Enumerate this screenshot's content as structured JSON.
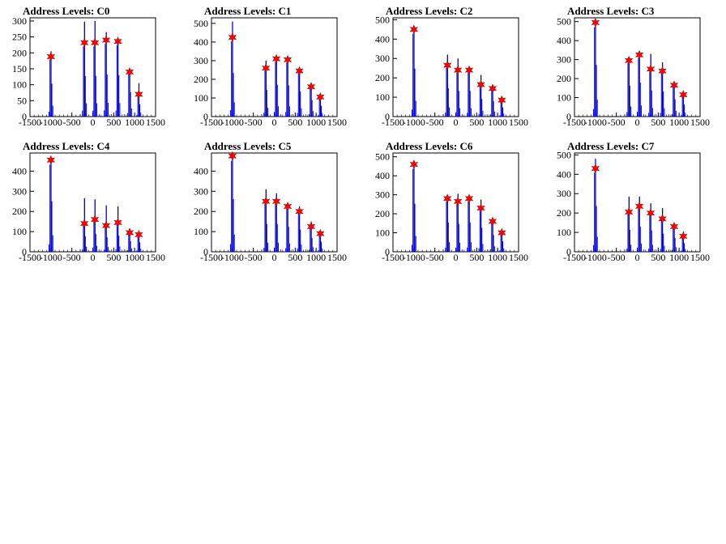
{
  "page": {
    "background": "#ffffff"
  },
  "style": {
    "histogram_color": "#0000ff",
    "peak_marker_color": "#ff0000",
    "frame_color": "#000000",
    "peak_marker_icon": "star-marker-icon"
  },
  "chart_data": [
    {
      "type": "bar",
      "title": "Address Levels: C0",
      "xlim": [
        -1500,
        1500
      ],
      "ylim": [
        0,
        310
      ],
      "xticks": [
        "-1500",
        "-1000",
        "-500",
        "0",
        "500",
        "1000",
        "1500"
      ],
      "yticks": [
        "0",
        "50",
        "100",
        "150",
        "200",
        "250",
        "300"
      ],
      "peaks": [
        {
          "x": -1000,
          "y": 188,
          "max": 205
        },
        {
          "x": -200,
          "y": 232,
          "max": 298
        },
        {
          "x": 50,
          "y": 232,
          "max": 300
        },
        {
          "x": 320,
          "y": 240,
          "max": 265
        },
        {
          "x": 600,
          "y": 236,
          "max": 245
        },
        {
          "x": 880,
          "y": 140,
          "max": 150
        },
        {
          "x": 1100,
          "y": 70,
          "max": 105
        }
      ]
    },
    {
      "type": "bar",
      "title": "Address Levels: C1",
      "xlim": [
        -1500,
        1500
      ],
      "ylim": [
        0,
        530
      ],
      "xticks": [
        "-1500",
        "-1000",
        "-500",
        "0",
        "500",
        "1000",
        "1500"
      ],
      "yticks": [
        "0",
        "100",
        "200",
        "300",
        "400",
        "500"
      ],
      "peaks": [
        {
          "x": -1000,
          "y": 425,
          "max": 510
        },
        {
          "x": -200,
          "y": 260,
          "max": 300
        },
        {
          "x": 50,
          "y": 310,
          "max": 320
        },
        {
          "x": 320,
          "y": 305,
          "max": 310
        },
        {
          "x": 600,
          "y": 245,
          "max": 255
        },
        {
          "x": 880,
          "y": 160,
          "max": 165
        },
        {
          "x": 1100,
          "y": 105,
          "max": 125
        }
      ]
    },
    {
      "type": "bar",
      "title": "Address Levels: C2",
      "xlim": [
        -1500,
        1500
      ],
      "ylim": [
        0,
        510
      ],
      "xticks": [
        "-1500",
        "-1000",
        "-500",
        "0",
        "500",
        "1000",
        "1500"
      ],
      "yticks": [
        "0",
        "100",
        "200",
        "300",
        "400",
        "500"
      ],
      "peaks": [
        {
          "x": -1000,
          "y": 450,
          "max": 465
        },
        {
          "x": -200,
          "y": 265,
          "max": 320
        },
        {
          "x": 50,
          "y": 240,
          "max": 300
        },
        {
          "x": 320,
          "y": 240,
          "max": 250
        },
        {
          "x": 600,
          "y": 165,
          "max": 215
        },
        {
          "x": 880,
          "y": 145,
          "max": 155
        },
        {
          "x": 1100,
          "y": 85,
          "max": 95
        }
      ]
    },
    {
      "type": "bar",
      "title": "Address Levels: C3",
      "xlim": [
        -1500,
        1500
      ],
      "ylim": [
        0,
        520
      ],
      "xticks": [
        "-1500",
        "-1000",
        "-500",
        "0",
        "500",
        "1000",
        "1500"
      ],
      "yticks": [
        "0",
        "100",
        "200",
        "300",
        "400",
        "500"
      ],
      "peaks": [
        {
          "x": -1000,
          "y": 495,
          "max": 510
        },
        {
          "x": -200,
          "y": 295,
          "max": 300
        },
        {
          "x": 50,
          "y": 325,
          "max": 330
        },
        {
          "x": 320,
          "y": 250,
          "max": 330
        },
        {
          "x": 600,
          "y": 240,
          "max": 285
        },
        {
          "x": 880,
          "y": 165,
          "max": 170
        },
        {
          "x": 1100,
          "y": 115,
          "max": 120
        }
      ]
    },
    {
      "type": "bar",
      "title": "Address Levels: C4",
      "xlim": [
        -1500,
        1500
      ],
      "ylim": [
        0,
        490
      ],
      "xticks": [
        "-1500",
        "-1000",
        "-500",
        "0",
        "500",
        "1000",
        "1500"
      ],
      "yticks": [
        "0",
        "100",
        "200",
        "300",
        "400"
      ],
      "peaks": [
        {
          "x": -1000,
          "y": 455,
          "max": 470
        },
        {
          "x": -200,
          "y": 140,
          "max": 265
        },
        {
          "x": 50,
          "y": 160,
          "max": 260
        },
        {
          "x": 320,
          "y": 130,
          "max": 230
        },
        {
          "x": 600,
          "y": 145,
          "max": 225
        },
        {
          "x": 880,
          "y": 95,
          "max": 115
        },
        {
          "x": 1100,
          "y": 85,
          "max": 90
        }
      ]
    },
    {
      "type": "bar",
      "title": "Address Levels: C5",
      "xlim": [
        -1500,
        1500
      ],
      "ylim": [
        0,
        490
      ],
      "xticks": [
        "-1500",
        "-1000",
        "-500",
        "0",
        "500",
        "1000",
        "1500"
      ],
      "yticks": [
        "0",
        "100",
        "200",
        "300",
        "400"
      ],
      "peaks": [
        {
          "x": -1000,
          "y": 475,
          "max": 485
        },
        {
          "x": -200,
          "y": 250,
          "max": 310
        },
        {
          "x": 50,
          "y": 250,
          "max": 290
        },
        {
          "x": 320,
          "y": 225,
          "max": 235
        },
        {
          "x": 600,
          "y": 200,
          "max": 225
        },
        {
          "x": 880,
          "y": 125,
          "max": 150
        },
        {
          "x": 1100,
          "y": 90,
          "max": 95
        }
      ]
    },
    {
      "type": "bar",
      "title": "Address Levels: C6",
      "xlim": [
        -1500,
        1500
      ],
      "ylim": [
        0,
        520
      ],
      "xticks": [
        "-1500",
        "-1000",
        "-500",
        "0",
        "500",
        "1000",
        "1500"
      ],
      "yticks": [
        "0",
        "100",
        "200",
        "300",
        "400",
        "500"
      ],
      "peaks": [
        {
          "x": -1000,
          "y": 460,
          "max": 480
        },
        {
          "x": -200,
          "y": 280,
          "max": 295
        },
        {
          "x": 50,
          "y": 265,
          "max": 305
        },
        {
          "x": 320,
          "y": 280,
          "max": 290
        },
        {
          "x": 600,
          "y": 230,
          "max": 275
        },
        {
          "x": 880,
          "y": 160,
          "max": 165
        },
        {
          "x": 1100,
          "y": 100,
          "max": 105
        }
      ]
    },
    {
      "type": "bar",
      "title": "Address Levels: C7",
      "xlim": [
        -1500,
        1500
      ],
      "ylim": [
        0,
        510
      ],
      "xticks": [
        "-1500",
        "-1000",
        "-500",
        "0",
        "500",
        "1000",
        "1500"
      ],
      "yticks": [
        "0",
        "100",
        "200",
        "300",
        "400",
        "500"
      ],
      "peaks": [
        {
          "x": -1000,
          "y": 430,
          "max": 480
        },
        {
          "x": -200,
          "y": 205,
          "max": 285
        },
        {
          "x": 50,
          "y": 235,
          "max": 285
        },
        {
          "x": 320,
          "y": 200,
          "max": 250
        },
        {
          "x": 600,
          "y": 170,
          "max": 225
        },
        {
          "x": 880,
          "y": 130,
          "max": 140
        },
        {
          "x": 1100,
          "y": 80,
          "max": 105
        }
      ]
    }
  ]
}
